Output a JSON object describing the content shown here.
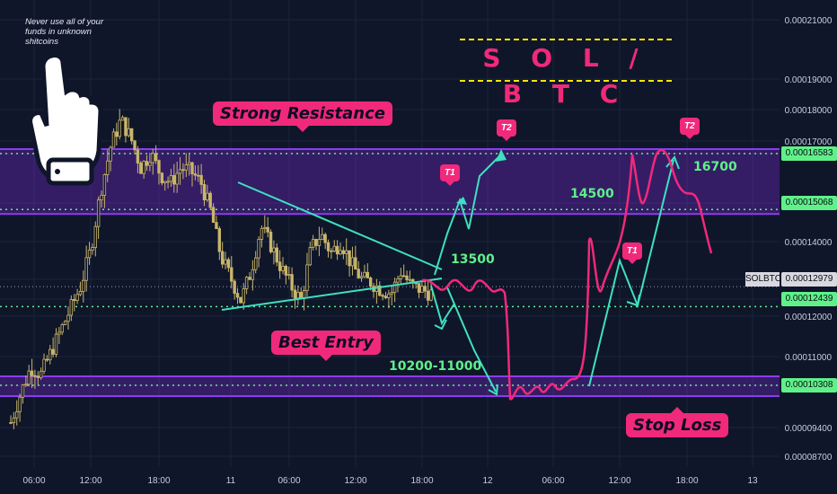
{
  "note": "Never use all of your funds in unknown shitcoins",
  "pair_title": "S O L / B T C",
  "labels": {
    "strong_resistance": "Strong Resistance",
    "best_entry": "Best Entry",
    "stop_loss": "Stop Loss",
    "t1": "T1",
    "t2": "T2",
    "lvl_13500": "13500",
    "lvl_14500": "14500",
    "lvl_16700": "16700",
    "lvl_range": "10200-11000"
  },
  "price_tags": {
    "symbol": "SOLBTC",
    "current": "0.00012979",
    "upper_band": "0.00016583",
    "mid_band": "0.00015068",
    "support": "0.00012439",
    "lower_band": "0.00010308"
  },
  "colors": {
    "background": "#0f1629",
    "candle": "#c9b56b",
    "zone": "#7c2bd8",
    "cyan": "#3fe0c0",
    "pink": "#f1297a",
    "green_tag": "#5ff08a",
    "yellow": "#ffe600"
  },
  "chart_data": {
    "type": "candlestick",
    "symbol": "SOLBTC",
    "x_ticks": [
      "06:00",
      "12:00",
      "18:00",
      "11",
      "06:00",
      "12:00",
      "18:00",
      "12",
      "06:00",
      "12:00",
      "18:00",
      "13"
    ],
    "y_ticks": [
      "0.00021000",
      "0.00019000",
      "0.00018000",
      "0.00017000",
      "0.00016583",
      "0.00015068",
      "0.00014000",
      "0.00012979",
      "0.00012439",
      "0.00012000",
      "0.00011000",
      "0.00010308",
      "0.00009400",
      "0.00008700"
    ],
    "ylim": [
      8.7e-05,
      0.00021
    ],
    "resistance_zone": [
      0.00015068,
      0.00016583
    ],
    "support_zone": [
      0.000101,
      0.00010308
    ],
    "support_line": 0.00012439,
    "current_price": 0.00012979,
    "close_path": [
      9.3e-05,
      0.000101,
      0.000108,
      0.000106,
      0.000112,
      0.000118,
      0.000124,
      0.00013,
      0.00014,
      0.000156,
      0.000168,
      0.000175,
      0.00017,
      0.000162,
      0.000166,
      0.00016,
      0.000158,
      0.000162,
      0.000161,
      0.000158,
      0.00015,
      0.000138,
      0.000132,
      0.000126,
      0.000134,
      0.000146,
      0.000141,
      0.000135,
      0.00013,
      0.000126,
      0.00014,
      0.000144,
      0.000139,
      0.000142,
      0.000136,
      0.000132,
      0.000131,
      0.000129,
      0.000128,
      0.000134,
      0.00013,
      0.000129,
      0.000128
    ]
  }
}
